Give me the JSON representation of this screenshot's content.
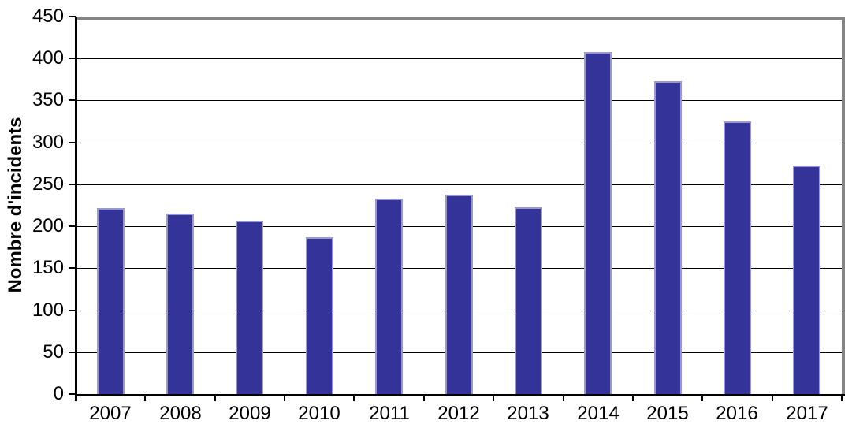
{
  "chart_data": {
    "type": "bar",
    "title": "",
    "xlabel": "",
    "ylabel": "Nombre d'incidents",
    "categories": [
      "2007",
      "2008",
      "2009",
      "2010",
      "2011",
      "2012",
      "2013",
      "2014",
      "2015",
      "2016",
      "2017"
    ],
    "values": [
      222,
      215,
      207,
      187,
      233,
      238,
      223,
      408,
      373,
      325,
      272
    ],
    "ylim": [
      0,
      450
    ],
    "ytick_step": 50,
    "yticks": [
      0,
      50,
      100,
      150,
      200,
      250,
      300,
      350,
      400,
      450
    ],
    "grid": true,
    "legend": false,
    "colors": {
      "bar_fill": "#333399",
      "bar_border": "#9999cc",
      "gridline": "#000000",
      "axis": "#000000",
      "plot_border": "#848484",
      "background": "#ffffff",
      "text": "#000000"
    }
  }
}
